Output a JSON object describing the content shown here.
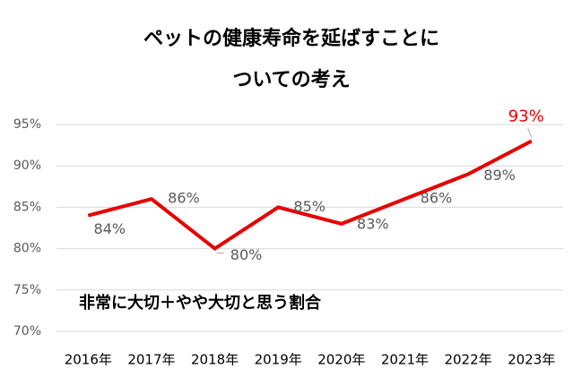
{
  "chart_data": {
    "type": "line",
    "title": [
      "ペットの健康寿命を延ばすことに",
      "ついての考え"
    ],
    "annotation": "非常に大切＋やや大切と思う割合",
    "categories": [
      "2016年",
      "2017年",
      "2018年",
      "2019年",
      "2020年",
      "2021年",
      "2022年",
      "2023年"
    ],
    "series": [
      {
        "color": "#e60000",
        "values": [
          84,
          86,
          80,
          85,
          83,
          86,
          89,
          93
        ],
        "value_labels": [
          "84%",
          "86%",
          "80%",
          "85%",
          "83%",
          "86%",
          "89%",
          "93%"
        ]
      }
    ],
    "ylim": [
      70,
      95
    ],
    "yticks": [
      {
        "value": 70,
        "label": "70%"
      },
      {
        "value": 75,
        "label": "75%"
      },
      {
        "value": 80,
        "label": "80%"
      },
      {
        "value": 85,
        "label": "85%"
      },
      {
        "value": 90,
        "label": "90%"
      },
      {
        "value": 95,
        "label": "95%"
      }
    ],
    "grid": true
  }
}
